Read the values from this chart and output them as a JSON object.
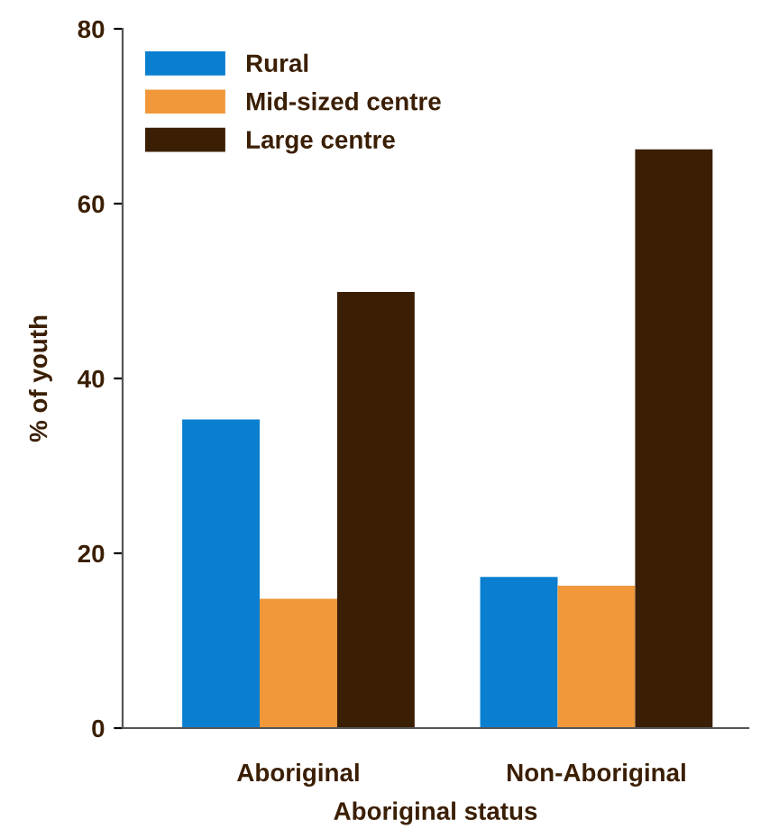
{
  "chart_data": {
    "type": "bar",
    "xlabel": "Aboriginal status",
    "ylabel": "% of youth",
    "categories": [
      "Aboriginal",
      "Non-Aboriginal"
    ],
    "series": [
      {
        "name": "Rural",
        "color": "#0a7fd0",
        "values": [
          35.3,
          17.3
        ]
      },
      {
        "name": "Mid-sized centre",
        "color": "#f0983a",
        "values": [
          14.8,
          16.3
        ]
      },
      {
        "name": "Large centre",
        "color": "#3b1f04",
        "values": [
          49.9,
          66.2
        ]
      }
    ],
    "ylim": [
      0,
      80
    ],
    "yticks": [
      0,
      20,
      40,
      60,
      80
    ],
    "grid": false,
    "legend": "top left"
  }
}
